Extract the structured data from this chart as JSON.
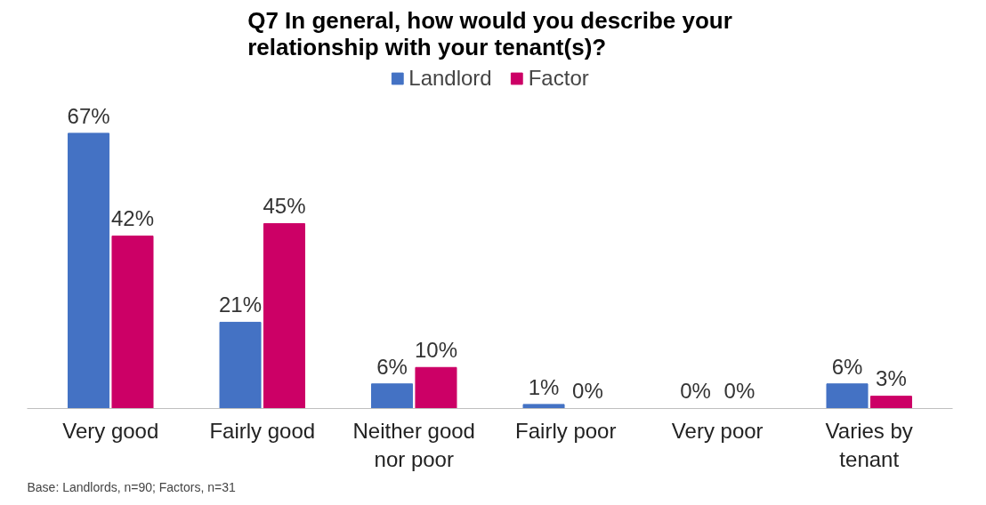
{
  "chart_data": {
    "type": "bar",
    "title": "Q7 In general, how would you describe your relationship with your tenant(s)?",
    "categories": [
      "Very good",
      "Fairly good",
      "Neither good nor poor",
      "Fairly poor",
      "Very poor",
      "Varies by tenant"
    ],
    "series": [
      {
        "name": "Landlord",
        "color": "#4472c4",
        "values": [
          67,
          21,
          6,
          1,
          0,
          6
        ],
        "value_labels": [
          "67%",
          "21%",
          "6%",
          "1%",
          "0%",
          "6%"
        ]
      },
      {
        "name": "Factor",
        "color": "#cc0066",
        "values": [
          42,
          45,
          10,
          0,
          0,
          3
        ],
        "value_labels": [
          "42%",
          "45%",
          "10%",
          "0%",
          "0%",
          "3%"
        ]
      }
    ],
    "legend": "top",
    "grid": false,
    "annotations": [
      "Base: Landlords, n=90; Factors, n=31"
    ]
  }
}
